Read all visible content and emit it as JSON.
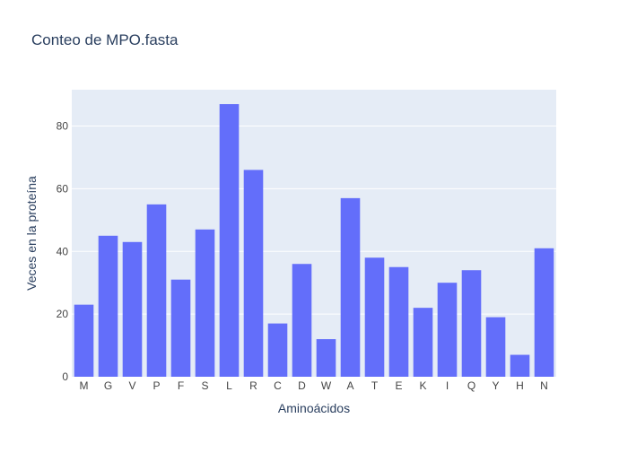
{
  "chart_data": {
    "type": "bar",
    "title": "Conteo de MPO.fasta",
    "xlabel": "Aminoácidos",
    "ylabel": "Veces en la proteína",
    "categories": [
      "M",
      "G",
      "V",
      "P",
      "F",
      "S",
      "L",
      "R",
      "C",
      "D",
      "W",
      "A",
      "T",
      "E",
      "K",
      "I",
      "Q",
      "Y",
      "H",
      "N"
    ],
    "values": [
      23,
      45,
      43,
      55,
      31,
      47,
      87,
      66,
      17,
      36,
      12,
      57,
      38,
      35,
      22,
      30,
      34,
      19,
      7,
      41
    ],
    "ylim": [
      0,
      91.6
    ],
    "yticks": [
      0,
      20,
      40,
      60,
      80
    ],
    "grid": true,
    "legend": "none",
    "colors": {
      "bar": "#636efa",
      "plot_bg": "#e5ecf6",
      "grid": "#ffffff",
      "text": "#2a3f5f",
      "tick_text": "#444444"
    }
  }
}
